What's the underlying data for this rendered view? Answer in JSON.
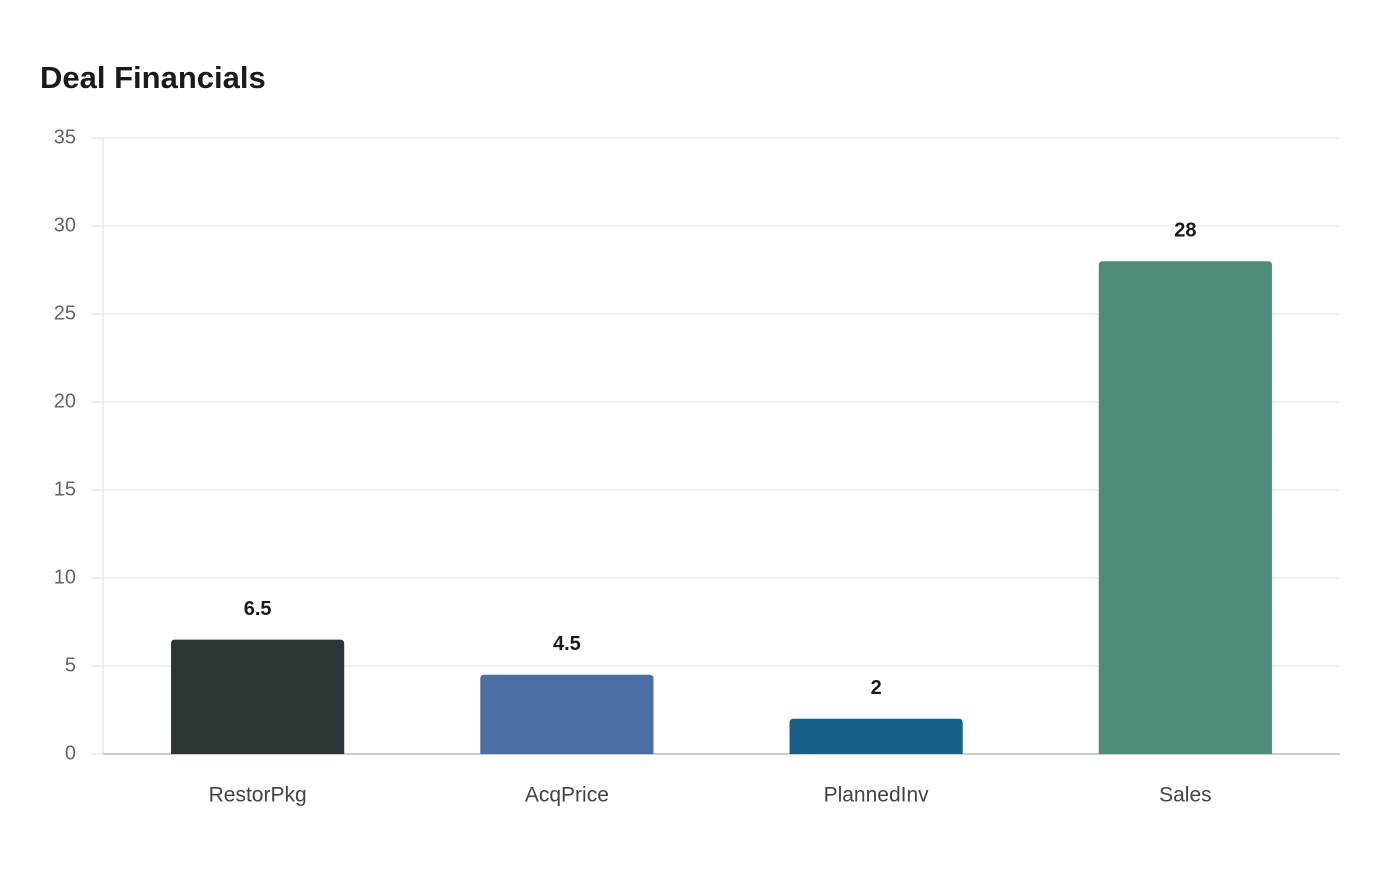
{
  "chart_data": {
    "type": "bar",
    "title": "Deal Financials",
    "categories": [
      "RestorPkg",
      "AcqPrice",
      "PlannedInv",
      "Sales"
    ],
    "values": [
      6.5,
      4.5,
      2,
      28
    ],
    "colors": [
      "#2d3436",
      "#4a6fa5",
      "#166088",
      "#4e8d7c"
    ],
    "ylim": [
      0,
      35
    ],
    "yticks": [
      0,
      5,
      10,
      15,
      20,
      25,
      30,
      35
    ],
    "grid": true
  }
}
